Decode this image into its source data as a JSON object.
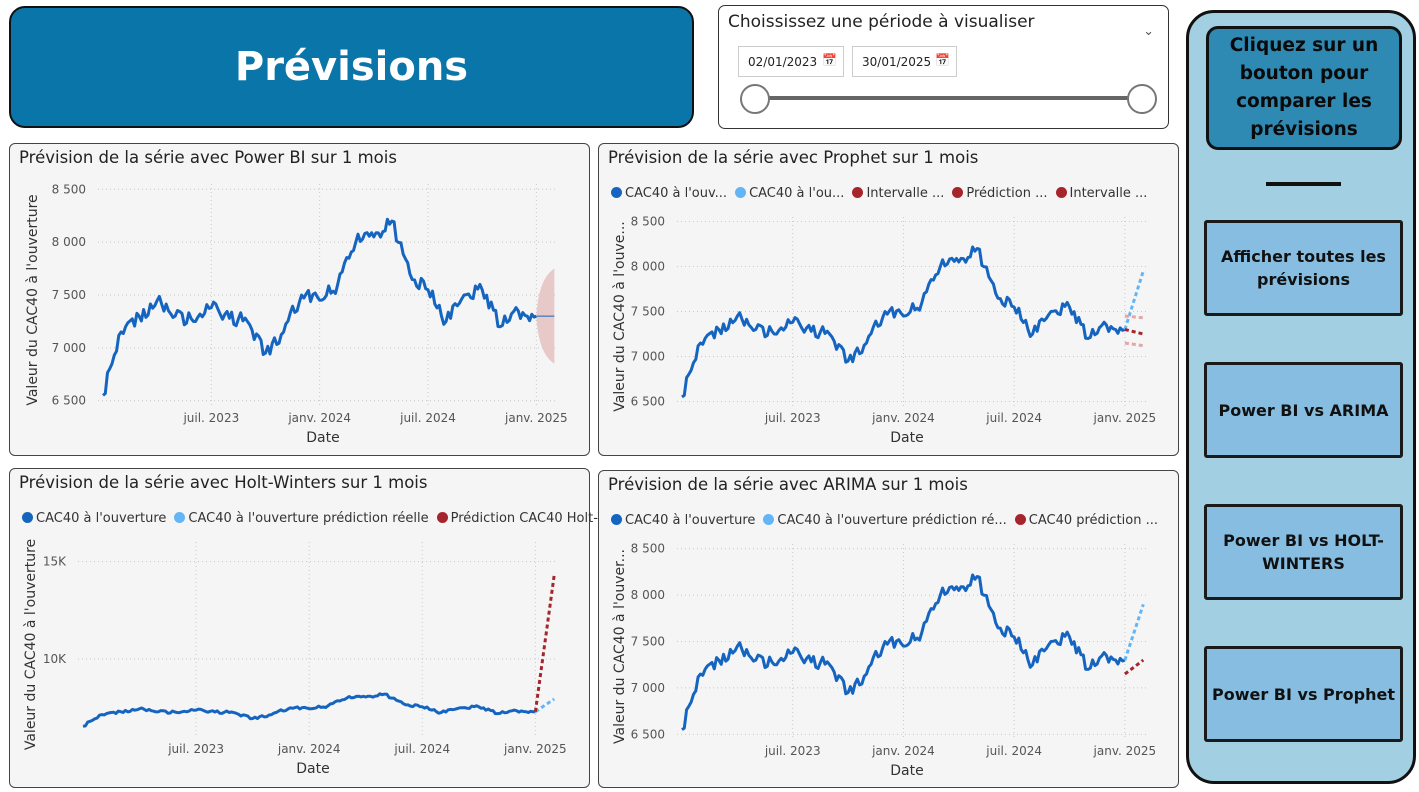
{
  "header": {
    "title": "Prévisions"
  },
  "slicer": {
    "title": "Choississez une période à visualiser",
    "start_date": "02/01/2023",
    "end_date": "30/01/2025"
  },
  "sidebar": {
    "header": "Cliquez sur un bouton pour comparer les prévisions",
    "buttons": [
      "Afficher toutes les prévisions",
      "Power BI vs ARIMA",
      "Power BI vs HOLT-WINTERS",
      "Power BI vs Prophet"
    ]
  },
  "colors": {
    "dark_blue": "#1565c0",
    "light_blue": "#64b5f6",
    "dark_red": "#a4262c",
    "band": "#e6c4c4",
    "brand": "#0a75a8"
  },
  "chart_data": [
    {
      "id": "powerbi",
      "type": "line",
      "title": "Prévision de la série avec Power BI sur 1 mois",
      "xlabel": "Date",
      "ylabel": "Valeur du CAC40 à l'ouverture",
      "x_ticks": [
        "juil. 2023",
        "janv. 2024",
        "juil. 2024",
        "janv. 2025"
      ],
      "y_ticks": [
        "6 500",
        "7 000",
        "7 500",
        "8 000",
        "8 500"
      ],
      "ylim": [
        6450,
        8550
      ],
      "legend": [],
      "series": [
        {
          "name": "",
          "color": "#1565c0",
          "style": "solid",
          "x": [
            "2023-01",
            "2023-02",
            "2023-03",
            "2023-04",
            "2023-05",
            "2023-06",
            "2023-07",
            "2023-08",
            "2023-09",
            "2023-10",
            "2023-11",
            "2023-12",
            "2024-01",
            "2024-02",
            "2024-03",
            "2024-04",
            "2024-05",
            "2024-06",
            "2024-07",
            "2024-08",
            "2024-09",
            "2024-10",
            "2024-11",
            "2024-12",
            "2025-01"
          ],
          "values": [
            6550,
            7150,
            7300,
            7450,
            7300,
            7250,
            7380,
            7280,
            7250,
            6950,
            7150,
            7500,
            7450,
            7600,
            8000,
            8050,
            8200,
            7700,
            7550,
            7250,
            7500,
            7550,
            7200,
            7350,
            7300
          ]
        },
        {
          "name": "",
          "color": "#1565c0",
          "style": "solid",
          "x": [
            "2025-01",
            "2025-02"
          ],
          "values": [
            7300,
            7300
          ]
        }
      ],
      "band": {
        "x": [
          "2025-01",
          "2025-02"
        ],
        "low": [
          7300,
          6850
        ],
        "high": [
          7300,
          7750
        ]
      }
    },
    {
      "id": "prophet",
      "type": "line",
      "title": "Prévision de la série avec Prophet sur 1 mois",
      "xlabel": "Date",
      "ylabel": "Valeur du CAC40 à l'ouve...",
      "x_ticks": [
        "juil. 2023",
        "janv. 2024",
        "juil. 2024",
        "janv. 2025"
      ],
      "y_ticks": [
        "6 500",
        "7 000",
        "7 500",
        "8 000",
        "8 500"
      ],
      "ylim": [
        6450,
        8550
      ],
      "legend": [
        {
          "label": "CAC40 à l'ouv...",
          "color": "#1565c0"
        },
        {
          "label": "CAC40 à l'ou...",
          "color": "#64b5f6"
        },
        {
          "label": "Intervalle ...",
          "color": "#a4262c"
        },
        {
          "label": "Prédiction ...",
          "color": "#a4262c"
        },
        {
          "label": "Intervalle ...",
          "color": "#a4262c"
        }
      ],
      "series": [
        {
          "name": "CAC40 à l'ouv...",
          "color": "#1565c0",
          "style": "solid",
          "x": [
            "2023-01",
            "2023-02",
            "2023-03",
            "2023-04",
            "2023-05",
            "2023-06",
            "2023-07",
            "2023-08",
            "2023-09",
            "2023-10",
            "2023-11",
            "2023-12",
            "2024-01",
            "2024-02",
            "2024-03",
            "2024-04",
            "2024-05",
            "2024-06",
            "2024-07",
            "2024-08",
            "2024-09",
            "2024-10",
            "2024-11",
            "2024-12",
            "2025-01"
          ],
          "values": [
            6550,
            7150,
            7300,
            7450,
            7300,
            7250,
            7380,
            7280,
            7250,
            6950,
            7150,
            7500,
            7450,
            7600,
            8000,
            8050,
            8200,
            7700,
            7550,
            7250,
            7500,
            7550,
            7200,
            7350,
            7300
          ]
        },
        {
          "name": "CAC40 à l'ou...",
          "color": "#64b5f6",
          "style": "dotted",
          "x": [
            "2025-01",
            "2025-02"
          ],
          "values": [
            7300,
            7950
          ]
        },
        {
          "name": "Prédiction ...",
          "color": "#a4262c",
          "style": "dotted",
          "x": [
            "2025-01",
            "2025-02"
          ],
          "values": [
            7300,
            7250
          ]
        },
        {
          "name": "Intervalle ...",
          "color": "#e0a8a8",
          "style": "dotted",
          "x": [
            "2025-01",
            "2025-02"
          ],
          "values": [
            7450,
            7430
          ]
        },
        {
          "name": "Intervalle ...",
          "color": "#e0a8a8",
          "style": "dotted",
          "x": [
            "2025-01",
            "2025-02"
          ],
          "values": [
            7150,
            7120
          ]
        }
      ]
    },
    {
      "id": "holtwinters",
      "type": "line",
      "title": "Prévision de la série avec Holt-Winters sur 1 mois",
      "xlabel": "Date",
      "ylabel": "Valeur du CAC40 à l'ouverture",
      "x_ticks": [
        "juil. 2023",
        "janv. 2024",
        "juil. 2024",
        "janv. 2025"
      ],
      "y_ticks": [
        "10K",
        "15K"
      ],
      "y_tick_values": [
        10000,
        15000
      ],
      "ylim": [
        6000,
        16000
      ],
      "legend": [
        {
          "label": "CAC40 à l'ouverture",
          "color": "#1565c0"
        },
        {
          "label": "CAC40 à l'ouverture prédiction réelle",
          "color": "#64b5f6"
        },
        {
          "label": "Prédiction CAC40 Holt-Wi...",
          "color": "#a4262c"
        }
      ],
      "series": [
        {
          "name": "CAC40 à l'ouverture",
          "color": "#1565c0",
          "style": "solid",
          "x": [
            "2023-01",
            "2023-02",
            "2023-03",
            "2023-04",
            "2023-05",
            "2023-06",
            "2023-07",
            "2023-08",
            "2023-09",
            "2023-10",
            "2023-11",
            "2023-12",
            "2024-01",
            "2024-02",
            "2024-03",
            "2024-04",
            "2024-05",
            "2024-06",
            "2024-07",
            "2024-08",
            "2024-09",
            "2024-10",
            "2024-11",
            "2024-12",
            "2025-01"
          ],
          "values": [
            6550,
            7150,
            7300,
            7450,
            7300,
            7250,
            7380,
            7280,
            7250,
            6950,
            7150,
            7500,
            7450,
            7600,
            8000,
            8050,
            8200,
            7700,
            7550,
            7250,
            7500,
            7550,
            7200,
            7350,
            7300
          ]
        },
        {
          "name": "CAC40 à l'ouverture prédiction réelle",
          "color": "#64b5f6",
          "style": "dotted",
          "x": [
            "2025-01",
            "2025-02"
          ],
          "values": [
            7300,
            7950
          ]
        },
        {
          "name": "Prédiction CAC40 Holt-Wi...",
          "color": "#a4262c",
          "style": "dotted",
          "x": [
            "2025-01",
            "2025-02"
          ],
          "values": [
            7300,
            14300
          ]
        }
      ]
    },
    {
      "id": "arima",
      "type": "line",
      "title": "Prévision de la série avec ARIMA sur 1 mois",
      "xlabel": "Date",
      "ylabel": "Valeur du CAC40 à l'ouver...",
      "x_ticks": [
        "juil. 2023",
        "janv. 2024",
        "juil. 2024",
        "janv. 2025"
      ],
      "y_ticks": [
        "6 500",
        "7 000",
        "7 500",
        "8 000",
        "8 500"
      ],
      "ylim": [
        6450,
        8550
      ],
      "legend": [
        {
          "label": "CAC40 à l'ouverture",
          "color": "#1565c0"
        },
        {
          "label": "CAC40 à l'ouverture prédiction ré...",
          "color": "#64b5f6"
        },
        {
          "label": "CAC40 prédiction ...",
          "color": "#a4262c"
        }
      ],
      "series": [
        {
          "name": "CAC40 à l'ouverture",
          "color": "#1565c0",
          "style": "solid",
          "x": [
            "2023-01",
            "2023-02",
            "2023-03",
            "2023-04",
            "2023-05",
            "2023-06",
            "2023-07",
            "2023-08",
            "2023-09",
            "2023-10",
            "2023-11",
            "2023-12",
            "2024-01",
            "2024-02",
            "2024-03",
            "2024-04",
            "2024-05",
            "2024-06",
            "2024-07",
            "2024-08",
            "2024-09",
            "2024-10",
            "2024-11",
            "2024-12",
            "2025-01"
          ],
          "values": [
            6550,
            7150,
            7300,
            7450,
            7300,
            7250,
            7380,
            7280,
            7250,
            6950,
            7150,
            7500,
            7450,
            7600,
            8000,
            8050,
            8200,
            7700,
            7550,
            7250,
            7500,
            7550,
            7200,
            7350,
            7300
          ]
        },
        {
          "name": "CAC40 à l'ouverture prédiction ré...",
          "color": "#64b5f6",
          "style": "dotted",
          "x": [
            "2025-01",
            "2025-02"
          ],
          "values": [
            7300,
            7900
          ]
        },
        {
          "name": "CAC40 prédiction ...",
          "color": "#a4262c",
          "style": "dotted",
          "x": [
            "2025-01",
            "2025-02"
          ],
          "values": [
            7150,
            7300
          ]
        }
      ]
    }
  ]
}
